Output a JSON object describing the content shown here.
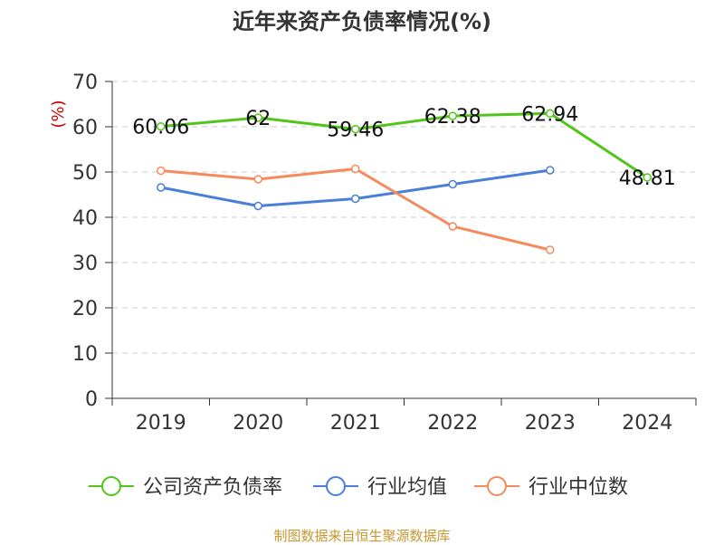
{
  "chart_data": {
    "type": "line",
    "title": "近年来资产负债率情况(%)",
    "ylabel": "(%)",
    "xlabel": "",
    "categories": [
      "2019",
      "2020",
      "2021",
      "2022",
      "2023",
      "2024"
    ],
    "ylim": [
      0,
      70
    ],
    "yticks": [
      0,
      10,
      20,
      30,
      40,
      50,
      60,
      70
    ],
    "grid": true,
    "legend_position": "bottom",
    "series": [
      {
        "name": "公司资产负债率",
        "color": "#52c41a",
        "values": [
          60.06,
          62,
          59.46,
          62.38,
          62.94,
          48.81
        ],
        "labels": [
          "60.06",
          "62",
          "59.46",
          "62.38",
          "62.94",
          "48.81"
        ]
      },
      {
        "name": "行业均值",
        "color": "#4a7fd9",
        "values": [
          46.6,
          42.5,
          44.1,
          47.3,
          50.4,
          null
        ]
      },
      {
        "name": "行业中位数",
        "color": "#f58a5c",
        "values": [
          50.3,
          48.4,
          50.7,
          38.0,
          32.8,
          null
        ]
      }
    ]
  },
  "footer": {
    "source": "制图数据来自恒生聚源数据库"
  }
}
